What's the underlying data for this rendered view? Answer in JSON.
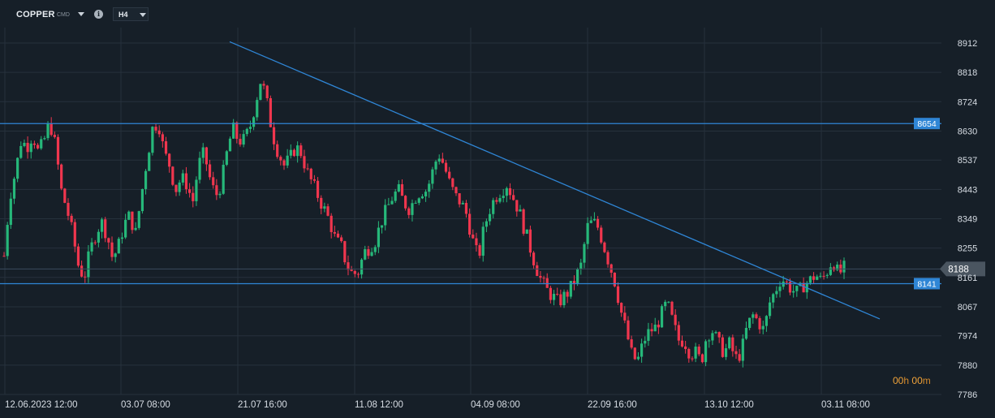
{
  "header": {
    "symbol": "COPPER",
    "symbol_suffix": "CMD",
    "timeframe": "H4"
  },
  "timer": {
    "h": "00",
    "h_unit": "h",
    "m": "00",
    "m_unit": "m"
  },
  "colors": {
    "background": "#161f28",
    "grid": "#26313c",
    "bull": "#26b87a",
    "bear": "#f0364e",
    "line": "#2f86d6",
    "label_bg": "#2f86d6",
    "price_tag_bg": "#4a5560",
    "axis_text": "#d7dde4"
  },
  "chart_data": {
    "type": "candlestick",
    "y_ticks": [
      8912,
      8818,
      8724,
      8630,
      8537,
      8443,
      8349,
      8255,
      8161,
      8067,
      7974,
      7880,
      7786
    ],
    "x_ticks": [
      "12.06.2023 12:00",
      "03.07 08:00",
      "21.07 16:00",
      "11.08 12:00",
      "04.09 08:00",
      "22.09 16:00",
      "13.10 12:00",
      "03.11 08:00"
    ],
    "ylim": [
      7786,
      8912
    ],
    "horizontal_lines": [
      {
        "name": "resistance",
        "value": 8654,
        "label": "8654"
      },
      {
        "name": "support",
        "value": 8141,
        "label": "8141"
      }
    ],
    "current_price": {
      "value": 8188,
      "label": "8188"
    },
    "trendline": {
      "start": {
        "x": "21.07 16:00 approx",
        "y": 8916
      },
      "end": {
        "x": "after 03.11 08:00",
        "y": 8028
      }
    },
    "closes_approx": [
      8230,
      8420,
      8500,
      8600,
      8580,
      8620,
      8560,
      8600,
      8660,
      8580,
      8440,
      8380,
      8300,
      8200,
      8160,
      8240,
      8300,
      8340,
      8300,
      8220,
      8260,
      8330,
      8360,
      8300,
      8420,
      8540,
      8640,
      8660,
      8560,
      8520,
      8440,
      8480,
      8460,
      8400,
      8520,
      8560,
      8480,
      8420,
      8460,
      8560,
      8640,
      8600,
      8600,
      8640,
      8720,
      8800,
      8720,
      8620,
      8560,
      8520,
      8540,
      8580,
      8560,
      8500,
      8460,
      8420,
      8380,
      8340,
      8280,
      8260,
      8200,
      8170,
      8180,
      8240,
      8260,
      8280,
      8340,
      8380,
      8420,
      8440,
      8400,
      8380,
      8420,
      8440,
      8440,
      8500,
      8560,
      8520,
      8460,
      8420,
      8400,
      8360,
      8280,
      8220,
      8320,
      8380,
      8420,
      8440,
      8460,
      8420,
      8380,
      8320,
      8260,
      8200,
      8150,
      8120,
      8100,
      8080,
      8100,
      8120,
      8160,
      8200,
      8320,
      8340,
      8320,
      8260,
      8200,
      8140,
      8050,
      7980,
      7900,
      7900,
      7960,
      7990,
      8000,
      8040,
      8080,
      8020,
      7960,
      7960,
      7920,
      7920,
      7890,
      7980,
      7990,
      7950,
      7920,
      7950,
      7900,
      7920,
      8000,
      8040,
      8020,
      7990,
      8080,
      8120,
      8160,
      8140,
      8120,
      8110,
      8140,
      8150,
      8170,
      8150,
      8180,
      8220,
      8170,
      8190
    ]
  }
}
